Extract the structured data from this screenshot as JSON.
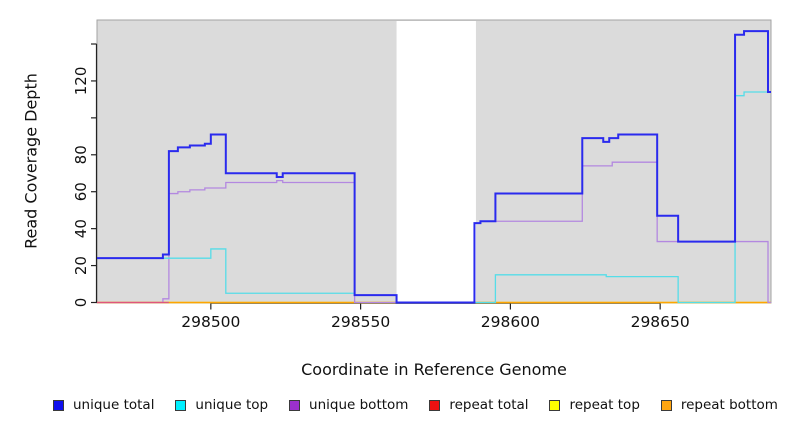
{
  "axes": {
    "ylabel": "Read Coverage Depth",
    "xlabel": "Coordinate in Reference Genome"
  },
  "legend": {
    "items": [
      {
        "label": "unique total",
        "color": "#1010ee"
      },
      {
        "label": "unique top",
        "color": "#00f0ff"
      },
      {
        "label": "unique bottom",
        "color": "#9b30cc"
      },
      {
        "label": "repeat total",
        "color": "#ee1111"
      },
      {
        "label": "repeat top",
        "color": "#ffff00"
      },
      {
        "label": "repeat bottom",
        "color": "#ffa510"
      }
    ]
  },
  "chart_data": {
    "type": "line",
    "subtype": "step",
    "title": "",
    "xlabel": "Coordinate in Reference Genome",
    "ylabel": "Read Coverage Depth",
    "xlim": [
      298462,
      298687
    ],
    "ylim": [
      0,
      153
    ],
    "x_ticks": [
      298500,
      298550,
      298600,
      298650
    ],
    "y_ticks": [
      0,
      20,
      40,
      60,
      80,
      100,
      120,
      140
    ],
    "y_ticks_labeled": [
      0,
      20,
      40,
      60,
      80,
      120
    ],
    "grid": false,
    "plot_bg": "#dbdbdb",
    "border_color": "#a3a3a3",
    "axis_color": "#222222",
    "legend_position": "bottom",
    "gap_region": {
      "from": 298562,
      "to": 298588.5,
      "color": "#ffffff"
    },
    "draw_order": [
      "repeat_top",
      "repeat_bottom",
      "unique_bottom",
      "repeat_total",
      "unique_top",
      "unique_total"
    ],
    "series": [
      {
        "id": "unique_total",
        "name": "unique total",
        "color": "#2a2aee",
        "width": 2,
        "steps": [
          [
            298462,
            24
          ],
          [
            298484,
            26
          ],
          [
            298486,
            82
          ],
          [
            298489,
            84
          ],
          [
            298493,
            85
          ],
          [
            298498,
            86
          ],
          [
            298500,
            91
          ],
          [
            298505,
            70
          ],
          [
            298522,
            68
          ],
          [
            298524,
            70
          ],
          [
            298548,
            4
          ],
          [
            298562,
            0
          ],
          [
            298588,
            43
          ],
          [
            298590,
            44
          ],
          [
            298595,
            59
          ],
          [
            298624,
            89
          ],
          [
            298631,
            87
          ],
          [
            298633,
            89
          ],
          [
            298636,
            91
          ],
          [
            298649,
            47
          ],
          [
            298656,
            33
          ],
          [
            298675,
            145
          ],
          [
            298678,
            147
          ],
          [
            298686,
            114
          ],
          [
            298687,
            114
          ]
        ]
      },
      {
        "id": "unique_top",
        "name": "unique top",
        "color": "#55dde8",
        "width": 1.3,
        "steps": [
          [
            298462,
            24
          ],
          [
            298500,
            29
          ],
          [
            298505,
            5
          ],
          [
            298548,
            4
          ],
          [
            298562,
            0
          ],
          [
            298595,
            15
          ],
          [
            298632,
            14
          ],
          [
            298656,
            0
          ],
          [
            298675,
            112
          ],
          [
            298678,
            114
          ],
          [
            298687,
            114
          ]
        ]
      },
      {
        "id": "unique_bottom",
        "name": "unique bottom",
        "color": "#b388e0",
        "width": 1.3,
        "steps": [
          [
            298462,
            0
          ],
          [
            298484,
            2
          ],
          [
            298486,
            59
          ],
          [
            298489,
            60
          ],
          [
            298493,
            61
          ],
          [
            298498,
            62
          ],
          [
            298505,
            65
          ],
          [
            298522,
            66
          ],
          [
            298524,
            65
          ],
          [
            298548,
            0
          ],
          [
            298588,
            43
          ],
          [
            298590,
            44
          ],
          [
            298624,
            74
          ],
          [
            298634,
            76
          ],
          [
            298649,
            33
          ],
          [
            298686,
            0
          ],
          [
            298687,
            0
          ]
        ]
      },
      {
        "id": "repeat_total",
        "name": "repeat total",
        "color": "#e0557e",
        "width": 1.3,
        "visible_range": [
          298462,
          298486
        ],
        "steps": [
          [
            298462,
            0
          ],
          [
            298687,
            0
          ]
        ]
      },
      {
        "id": "repeat_top",
        "name": "repeat top",
        "color": "#ffff00",
        "width": 1.3,
        "steps": [
          [
            298462,
            0
          ],
          [
            298687,
            0
          ]
        ]
      },
      {
        "id": "repeat_bottom",
        "name": "repeat bottom",
        "color": "#ffa500",
        "width": 1.5,
        "steps": [
          [
            298462,
            0
          ],
          [
            298687,
            0
          ]
        ]
      }
    ]
  }
}
